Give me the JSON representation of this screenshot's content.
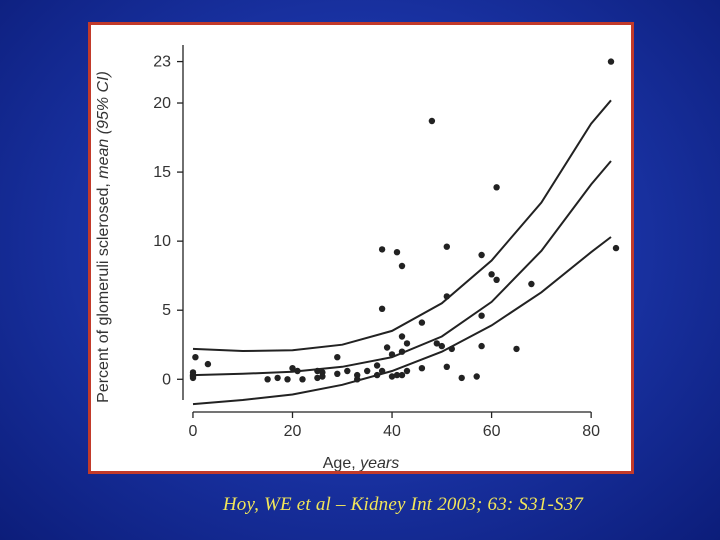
{
  "citation": "Hoy, WE et al – Kidney Int 2003; 63: S31-S37",
  "colors": {
    "frame_border": "#c23a2a",
    "citation_text": "#f2e65a",
    "marks": "#222222"
  },
  "chart_data": {
    "type": "scatter",
    "xlabel_plain": "Age, ",
    "xlabel_italic": "years",
    "ylabel_plain": "Percent of glomeruli sclerosed, ",
    "ylabel_italic": "mean (95% CI)",
    "xlim": [
      -2,
      86
    ],
    "ylim": [
      -1.5,
      24.2
    ],
    "x_ticks": [
      0,
      20,
      40,
      60,
      80
    ],
    "y_ticks": [
      0,
      5,
      10,
      15,
      20,
      23
    ],
    "points": [
      [
        0,
        0.1
      ],
      [
        0,
        0.3
      ],
      [
        0,
        0.5
      ],
      [
        0,
        0.2
      ],
      [
        0.5,
        1.6
      ],
      [
        3,
        1.1
      ],
      [
        15,
        0
      ],
      [
        17,
        0.1
      ],
      [
        19,
        0
      ],
      [
        20,
        0.8
      ],
      [
        21,
        0.6
      ],
      [
        22,
        0
      ],
      [
        25,
        0.1
      ],
      [
        25,
        0.6
      ],
      [
        26,
        0.5
      ],
      [
        26,
        0.2
      ],
      [
        29,
        0.4
      ],
      [
        29,
        1.6
      ],
      [
        31,
        0.6
      ],
      [
        33,
        0
      ],
      [
        33,
        0.3
      ],
      [
        35,
        0.6
      ],
      [
        37,
        1.0
      ],
      [
        37,
        0.3
      ],
      [
        38,
        9.4
      ],
      [
        38,
        5.1
      ],
      [
        38,
        0.6
      ],
      [
        39,
        2.3
      ],
      [
        40,
        0.2
      ],
      [
        40,
        1.8
      ],
      [
        41,
        9.2
      ],
      [
        41,
        0.3
      ],
      [
        42,
        8.2
      ],
      [
        42,
        3.1
      ],
      [
        42,
        2.0
      ],
      [
        42,
        0.3
      ],
      [
        43,
        0.6
      ],
      [
        43,
        2.6
      ],
      [
        46,
        4.1
      ],
      [
        46,
        0.8
      ],
      [
        48,
        18.7
      ],
      [
        49,
        2.6
      ],
      [
        50,
        2.4
      ],
      [
        51,
        9.6
      ],
      [
        51,
        6.0
      ],
      [
        51,
        0.9
      ],
      [
        52,
        2.2
      ],
      [
        54,
        0.1
      ],
      [
        57,
        0.2
      ],
      [
        58,
        9.0
      ],
      [
        58,
        4.6
      ],
      [
        58,
        2.4
      ],
      [
        60,
        7.6
      ],
      [
        61,
        13.9
      ],
      [
        61,
        7.2
      ],
      [
        65,
        2.2
      ],
      [
        68,
        6.9
      ],
      [
        84,
        23.0
      ],
      [
        85,
        9.5
      ]
    ],
    "fit_curves": {
      "upper_t": [
        0,
        10,
        20,
        30,
        40,
        50,
        60,
        70,
        80,
        84
      ],
      "upper": [
        2.2,
        2.05,
        2.1,
        2.5,
        3.5,
        5.5,
        8.6,
        12.8,
        18.5,
        20.2
      ],
      "middle_t": [
        0,
        10,
        20,
        30,
        40,
        50,
        60,
        70,
        80,
        84
      ],
      "middle": [
        0.3,
        0.4,
        0.55,
        0.9,
        1.6,
        3.1,
        5.6,
        9.3,
        14.1,
        15.8
      ],
      "lower_t": [
        0,
        10,
        20,
        30,
        40,
        50,
        60,
        70,
        80,
        84
      ],
      "lower": [
        -1.8,
        -1.5,
        -1.1,
        -0.4,
        0.6,
        2.0,
        3.9,
        6.3,
        9.2,
        10.3
      ]
    }
  }
}
